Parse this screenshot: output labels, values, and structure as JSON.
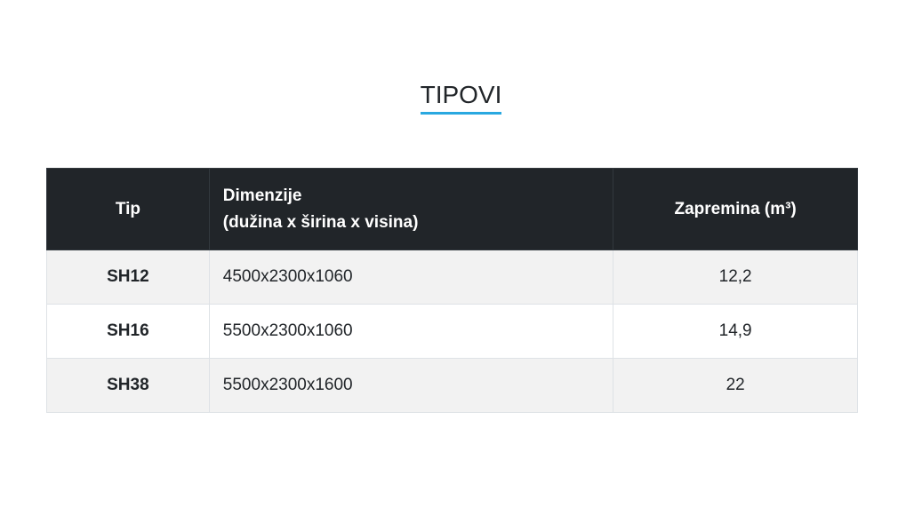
{
  "header": {
    "title": "TIPOVI"
  },
  "table": {
    "columns": [
      [
        "Tip"
      ],
      [
        "Dimenzije",
        "(dužina x širina x visina)"
      ],
      [
        "Zapremina (m³)"
      ]
    ],
    "rows": [
      [
        "SH12",
        "4500x2300x1060",
        "12,2"
      ],
      [
        "SH16",
        "5500x2300x1060",
        "14,9"
      ],
      [
        "SH38",
        "5500x2300x1600",
        "22"
      ]
    ]
  }
}
